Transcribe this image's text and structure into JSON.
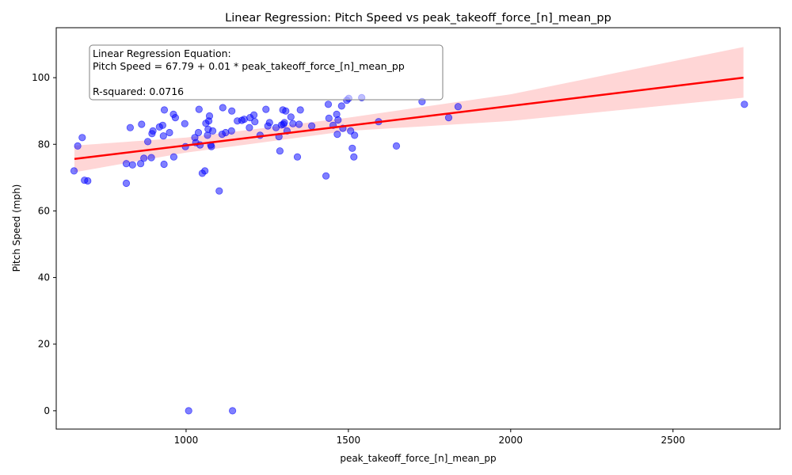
{
  "chart_data": {
    "type": "scatter",
    "title": "Linear Regression: Pitch Speed vs peak_takeoff_force_[n]_mean_pp",
    "xlabel": "peak_takeoff_force_[n]_mean_pp",
    "ylabel": "Pitch Speed (mph)",
    "xlim": [
      600,
      2830
    ],
    "ylim": [
      -5.5,
      115
    ],
    "x_ticks": [
      1000,
      1500,
      2000,
      2500
    ],
    "y_ticks": [
      0,
      20,
      40,
      60,
      80,
      100
    ],
    "grid": false,
    "point_color": "#0000ff",
    "line_color": "#ff0000",
    "band_color": "#ff9999",
    "annotation": {
      "line1": "Linear Regression Equation:",
      "line2": "Pitch Speed = 67.79 + 0.01 * peak_takeoff_force_[n]_mean_pp",
      "line3": "R-squared: 0.0716"
    },
    "regression": {
      "x": [
        656,
        2717
      ],
      "y": [
        75.6,
        100
      ]
    },
    "confidence_band": {
      "x": [
        656,
        1000,
        1500,
        2000,
        2717
      ],
      "upper": [
        79.6,
        82.0,
        88.0,
        95.0,
        109.2
      ],
      "lower": [
        71.6,
        77.5,
        84.0,
        87.0,
        94.0
      ]
    },
    "points": [
      {
        "x": 655,
        "y": 72
      },
      {
        "x": 666,
        "y": 79.5
      },
      {
        "x": 680,
        "y": 82
      },
      {
        "x": 687,
        "y": 69.2
      },
      {
        "x": 697,
        "y": 69
      },
      {
        "x": 816,
        "y": 74.2
      },
      {
        "x": 816,
        "y": 68.3
      },
      {
        "x": 828,
        "y": 85
      },
      {
        "x": 835,
        "y": 73.8
      },
      {
        "x": 860,
        "y": 74.2
      },
      {
        "x": 863,
        "y": 86
      },
      {
        "x": 870,
        "y": 75.8
      },
      {
        "x": 882,
        "y": 80.8
      },
      {
        "x": 893,
        "y": 76
      },
      {
        "x": 895,
        "y": 83.2
      },
      {
        "x": 898,
        "y": 84
      },
      {
        "x": 918,
        "y": 85.2
      },
      {
        "x": 928,
        "y": 85.7
      },
      {
        "x": 930,
        "y": 82.5
      },
      {
        "x": 932,
        "y": 74
      },
      {
        "x": 933,
        "y": 90.3
      },
      {
        "x": 949,
        "y": 83.5
      },
      {
        "x": 961,
        "y": 89
      },
      {
        "x": 962,
        "y": 76.2
      },
      {
        "x": 967,
        "y": 88
      },
      {
        "x": 996,
        "y": 86.2
      },
      {
        "x": 998,
        "y": 79.3
      },
      {
        "x": 1008,
        "y": 0
      },
      {
        "x": 1027,
        "y": 82
      },
      {
        "x": 1030,
        "y": 80.5
      },
      {
        "x": 1038,
        "y": 83.5
      },
      {
        "x": 1040,
        "y": 90.5
      },
      {
        "x": 1043,
        "y": 79.8
      },
      {
        "x": 1050,
        "y": 71.3
      },
      {
        "x": 1058,
        "y": 72
      },
      {
        "x": 1061,
        "y": 86.3
      },
      {
        "x": 1066,
        "y": 82.7
      },
      {
        "x": 1068,
        "y": 84.5
      },
      {
        "x": 1070,
        "y": 87
      },
      {
        "x": 1072,
        "y": 88.5
      },
      {
        "x": 1076,
        "y": 79.8
      },
      {
        "x": 1078,
        "y": 79.3
      },
      {
        "x": 1082,
        "y": 84
      },
      {
        "x": 1102,
        "y": 66
      },
      {
        "x": 1111,
        "y": 83
      },
      {
        "x": 1113,
        "y": 91
      },
      {
        "x": 1122,
        "y": 83.5
      },
      {
        "x": 1140,
        "y": 84
      },
      {
        "x": 1141,
        "y": 90
      },
      {
        "x": 1143,
        "y": 0
      },
      {
        "x": 1158,
        "y": 87
      },
      {
        "x": 1172,
        "y": 87.2
      },
      {
        "x": 1179,
        "y": 87.5
      },
      {
        "x": 1195,
        "y": 85
      },
      {
        "x": 1197,
        "y": 88
      },
      {
        "x": 1209,
        "y": 88.8
      },
      {
        "x": 1212,
        "y": 86.8
      },
      {
        "x": 1228,
        "y": 82.7
      },
      {
        "x": 1246,
        "y": 90.5
      },
      {
        "x": 1252,
        "y": 85.5
      },
      {
        "x": 1257,
        "y": 86.5
      },
      {
        "x": 1277,
        "y": 85
      },
      {
        "x": 1286,
        "y": 82.3
      },
      {
        "x": 1289,
        "y": 78
      },
      {
        "x": 1294,
        "y": 85.8
      },
      {
        "x": 1298,
        "y": 90.3
      },
      {
        "x": 1300,
        "y": 86
      },
      {
        "x": 1303,
        "y": 86.5
      },
      {
        "x": 1307,
        "y": 90
      },
      {
        "x": 1311,
        "y": 84
      },
      {
        "x": 1323,
        "y": 88.2
      },
      {
        "x": 1329,
        "y": 86.2
      },
      {
        "x": 1343,
        "y": 76.2
      },
      {
        "x": 1348,
        "y": 86
      },
      {
        "x": 1352,
        "y": 90.3
      },
      {
        "x": 1387,
        "y": 85.5
      },
      {
        "x": 1431,
        "y": 70.5
      },
      {
        "x": 1438,
        "y": 92
      },
      {
        "x": 1440,
        "y": 87.8
      },
      {
        "x": 1453,
        "y": 85.7
      },
      {
        "x": 1464,
        "y": 89
      },
      {
        "x": 1466,
        "y": 83
      },
      {
        "x": 1468,
        "y": 87.3
      },
      {
        "x": 1479,
        "y": 91.5
      },
      {
        "x": 1483,
        "y": 84.8
      },
      {
        "x": 1495,
        "y": 93.2
      },
      {
        "x": 1501,
        "y": 93.8
      },
      {
        "x": 1507,
        "y": 84
      },
      {
        "x": 1512,
        "y": 78.8
      },
      {
        "x": 1517,
        "y": 76.2
      },
      {
        "x": 1519,
        "y": 82.7
      },
      {
        "x": 1541,
        "y": 94
      },
      {
        "x": 1593,
        "y": 86.8
      },
      {
        "x": 1648,
        "y": 79.5
      },
      {
        "x": 1727,
        "y": 92.8
      },
      {
        "x": 1809,
        "y": 88
      },
      {
        "x": 1838,
        "y": 91.3
      },
      {
        "x": 2720,
        "y": 92
      }
    ]
  }
}
